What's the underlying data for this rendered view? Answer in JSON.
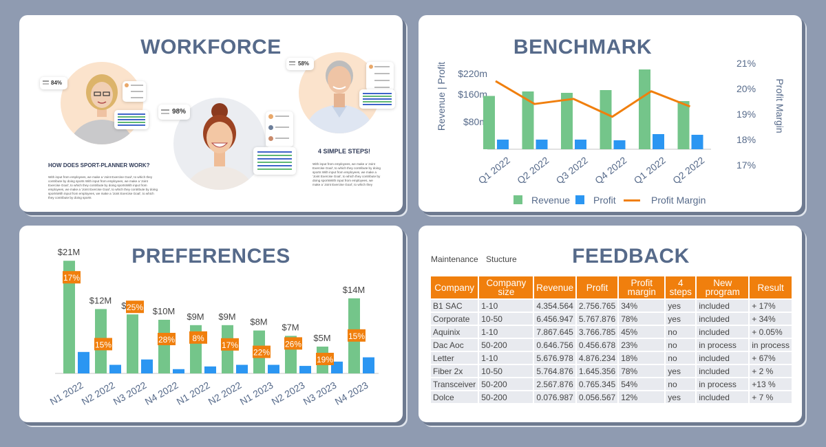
{
  "colors": {
    "green": "#74c58a",
    "blue": "#2b96f2",
    "orange": "#f07f0d",
    "title": "#566a8a",
    "page_bg": "#8f9bb1"
  },
  "workforce": {
    "title": "WORKFORCE",
    "stats": [
      "84%",
      "98%",
      "58%"
    ],
    "how_heading": "HOW DOES SPORT-PLANNER WORK?",
    "how_text": "With input from employees, we make a 'Joint Exercise Goal', to which they contribute by doing sports With input from employees, we make a 'Joint Exercise Goal', to which they contribute by doing sportsWith input from employees, we make a 'Joint Exercise Goal', to which they contribute by doing sportsWith input from employees, we make a 'Joint Exercise Goal', to which they contribute by doing sports",
    "steps_heading": "4 SIMPLE STEPS!",
    "steps_text": "With input from employees, we make a 'Joint Exercise Goal', to which they contribute by doing sports With input from employees, we make a 'Joint Exercise Goal', to which they contribute by doing sportsWith input from employees, we make a 'Joint Exercise Goal', to which they"
  },
  "benchmark": {
    "title": "BENCHMARK",
    "chart_data": {
      "type": "bar",
      "categories": [
        "Q1 2022",
        "Q2 2022",
        "Q3 2022",
        "Q4 2022",
        "Q1 2022",
        "Q2 2022"
      ],
      "series": [
        {
          "name": "Revenue",
          "values": [
            155,
            168,
            164,
            172,
            232,
            140
          ]
        },
        {
          "name": "Profit",
          "values": [
            28,
            28,
            28,
            26,
            44,
            42
          ]
        },
        {
          "name": "Profit Margin",
          "values": [
            20.3,
            19.4,
            19.6,
            18.9,
            19.9,
            19.3
          ]
        }
      ],
      "ylabel": "Revenue | Profit",
      "y2label": "Profit Margin",
      "y_ticks": [
        "$80m",
        "$160m",
        "$220m"
      ],
      "y_tick_values": [
        80,
        160,
        220
      ],
      "y2_ticks": [
        "17%",
        "18%",
        "19%",
        "20%",
        "21%"
      ],
      "y2_tick_values": [
        17,
        18,
        19,
        20,
        21
      ],
      "ylim": [
        0,
        250
      ],
      "y2lim": [
        17,
        21
      ],
      "legend": [
        "Revenue",
        "Profit",
        "Profit Margin"
      ],
      "legend_position": "bottom"
    }
  },
  "preferences": {
    "title": "PREFERENCES",
    "chart_data": {
      "type": "bar",
      "categories": [
        "N1 2022",
        "N2 2022",
        "N3 2022",
        "N4 2022",
        "N1 2022",
        "N2 2022",
        "N1 2023",
        "N2 2023",
        "N3 2023",
        "N4 2023"
      ],
      "series": [
        {
          "name": "green",
          "values": [
            21,
            12,
            11,
            10,
            9,
            9,
            8,
            7,
            5,
            14
          ]
        },
        {
          "name": "blue",
          "values": [
            4,
            1.6,
            2.6,
            0.8,
            1.3,
            1.6,
            1.6,
            1.4,
            2.2,
            3
          ]
        }
      ],
      "value_labels": [
        "$21M",
        "$12M",
        "$11M",
        "$10M",
        "$9M",
        "$9M",
        "$8M",
        "$7M",
        "$5M",
        "$14M"
      ],
      "pct_labels": [
        "17%",
        "15%",
        "25%",
        "28%",
        "8%",
        "17%",
        "22%",
        "26%",
        "19%",
        "15%"
      ],
      "ylim": [
        0,
        22
      ]
    }
  },
  "feedback": {
    "title": "FEEDBACK",
    "tabs": [
      "Maintenance",
      "Stucture"
    ],
    "headers": [
      "Company",
      "Company size",
      "Revenue",
      "Profit",
      "Profit margin",
      "4 steps",
      "New program",
      "Result"
    ],
    "rows": [
      [
        "B1 SAC",
        "1-10",
        "4.354.564",
        "2.756.765",
        "34%",
        "yes",
        "included",
        "+ 17%"
      ],
      [
        "Corporate",
        "10-50",
        "6.456.947",
        "5.767.876",
        "78%",
        "yes",
        "included",
        "+ 34%"
      ],
      [
        "Aquinix",
        "1-10",
        "7.867.645",
        "3.766.785",
        "45%",
        "no",
        "included",
        "+ 0.05%"
      ],
      [
        "Dac Aoc",
        "50-200",
        "0.646.756",
        "0.456.678",
        "23%",
        "no",
        "in process",
        "in process"
      ],
      [
        "Letter",
        "1-10",
        "5.676.978",
        "4.876.234",
        "18%",
        "no",
        "included",
        "+ 67%"
      ],
      [
        "Fiber 2x",
        "10-50",
        "5.764.876",
        "1.645.356",
        "78%",
        "yes",
        "included",
        "+ 2 %"
      ],
      [
        "Transceiver",
        "50-200",
        "2.567.876",
        "0.765.345",
        "54%",
        "no",
        "in process",
        "+13 %"
      ],
      [
        "Dolce",
        "50-200",
        "0.076.987",
        "0.056.567",
        "12%",
        "yes",
        "included",
        "+ 7 %"
      ]
    ]
  }
}
